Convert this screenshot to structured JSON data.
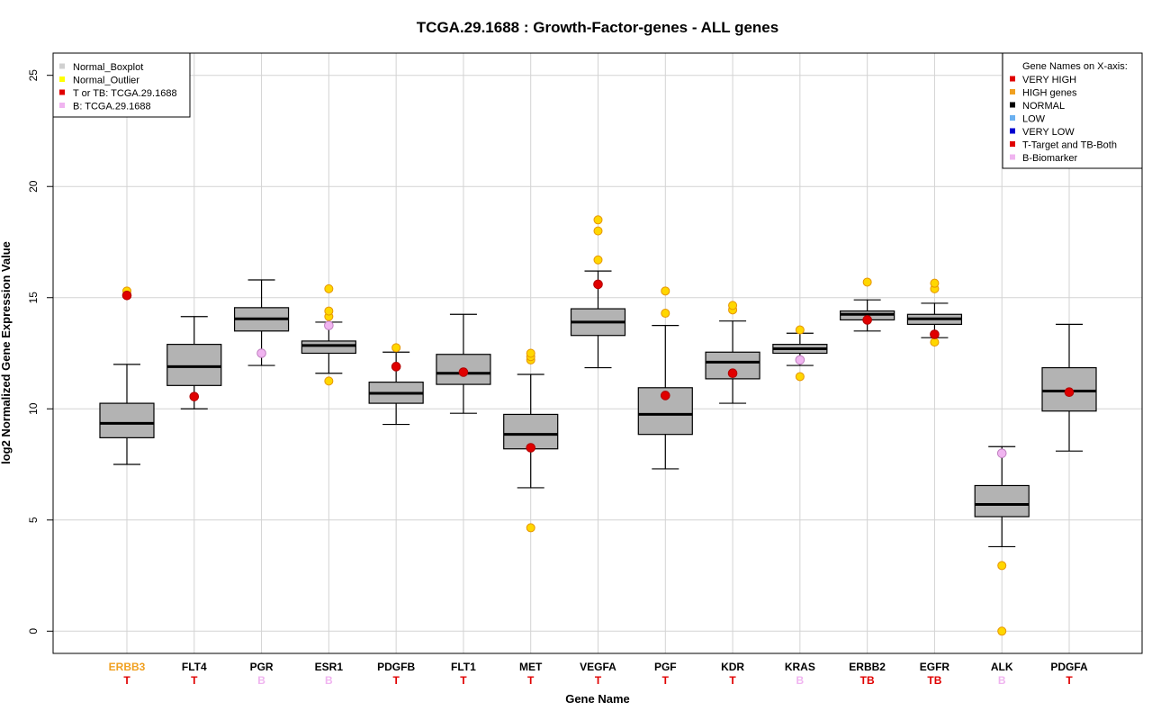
{
  "chart_data": {
    "type": "boxplot",
    "title": "TCGA.29.1688 : Growth-Factor-genes - ALL genes",
    "xlabel": "Gene Name",
    "ylabel": "log2 Normalized Gene Expression Value",
    "ylim": [
      -1,
      26
    ],
    "yticks": [
      0,
      5,
      10,
      15,
      20,
      25
    ],
    "grid": true,
    "colors": {
      "box_fill": "#b3b3b3",
      "outlier": "#ffd700",
      "outlier_border": "#e69500",
      "sample_T": "#e00000",
      "sample_B": "#f0b4f0",
      "gene_high": "#f0a020",
      "gene_normal": "#000000",
      "tag_T": "#e00000",
      "tag_B": "#f0b4f0"
    },
    "genes": [
      {
        "name": "ERBB3",
        "name_class": "high",
        "tag": "T",
        "whisker_low": 7.5,
        "q1": 8.7,
        "median": 9.35,
        "q3": 10.25,
        "whisker_high": 12.0,
        "outliers": [
          15.3
        ],
        "sample": 15.1,
        "sample_type": "T"
      },
      {
        "name": "FLT4",
        "name_class": "normal",
        "tag": "T",
        "whisker_low": 10.0,
        "q1": 11.05,
        "median": 11.9,
        "q3": 12.9,
        "whisker_high": 14.15,
        "outliers": [],
        "sample": 10.55,
        "sample_type": "T"
      },
      {
        "name": "PGR",
        "name_class": "normal",
        "tag": "B",
        "whisker_low": 11.95,
        "q1": 13.5,
        "median": 14.05,
        "q3": 14.55,
        "whisker_high": 15.8,
        "outliers": [],
        "sample": 12.5,
        "sample_type": "B"
      },
      {
        "name": "ESR1",
        "name_class": "normal",
        "tag": "B",
        "whisker_low": 11.6,
        "q1": 12.5,
        "median": 12.85,
        "q3": 13.05,
        "whisker_high": 13.9,
        "outliers": [
          11.25,
          14.15,
          14.4,
          15.4
        ],
        "sample": 13.75,
        "sample_type": "B"
      },
      {
        "name": "PDGFB",
        "name_class": "normal",
        "tag": "T",
        "whisker_low": 9.3,
        "q1": 10.25,
        "median": 10.7,
        "q3": 11.2,
        "whisker_high": 12.55,
        "outliers": [
          12.75
        ],
        "sample": 11.9,
        "sample_type": "T"
      },
      {
        "name": "FLT1",
        "name_class": "normal",
        "tag": "T",
        "whisker_low": 9.8,
        "q1": 11.1,
        "median": 11.6,
        "q3": 12.45,
        "whisker_high": 14.25,
        "outliers": [],
        "sample": 11.65,
        "sample_type": "T"
      },
      {
        "name": "MET",
        "name_class": "normal",
        "tag": "T",
        "whisker_low": 6.45,
        "q1": 8.2,
        "median": 8.85,
        "q3": 9.75,
        "whisker_high": 11.55,
        "outliers": [
          4.65,
          12.2,
          12.35,
          12.5
        ],
        "sample": 8.25,
        "sample_type": "T"
      },
      {
        "name": "VEGFA",
        "name_class": "normal",
        "tag": "T",
        "whisker_low": 11.85,
        "q1": 13.3,
        "median": 13.9,
        "q3": 14.5,
        "whisker_high": 16.2,
        "outliers": [
          16.7,
          18.0,
          18.5
        ],
        "sample": 15.6,
        "sample_type": "T"
      },
      {
        "name": "PGF",
        "name_class": "normal",
        "tag": "T",
        "whisker_low": 7.3,
        "q1": 8.85,
        "median": 9.75,
        "q3": 10.95,
        "whisker_high": 13.75,
        "outliers": [
          14.3,
          15.3
        ],
        "sample": 10.6,
        "sample_type": "T"
      },
      {
        "name": "KDR",
        "name_class": "normal",
        "tag": "T",
        "whisker_low": 10.25,
        "q1": 11.35,
        "median": 12.1,
        "q3": 12.55,
        "whisker_high": 13.95,
        "outliers": [
          14.45,
          14.65
        ],
        "sample": 11.6,
        "sample_type": "T"
      },
      {
        "name": "KRAS",
        "name_class": "normal",
        "tag": "B",
        "whisker_low": 11.95,
        "q1": 12.5,
        "median": 12.7,
        "q3": 12.9,
        "whisker_high": 13.4,
        "outliers": [
          11.45,
          13.55
        ],
        "sample": 12.2,
        "sample_type": "B"
      },
      {
        "name": "ERBB2",
        "name_class": "normal",
        "tag": "TB",
        "whisker_low": 13.5,
        "q1": 14.0,
        "median": 14.25,
        "q3": 14.4,
        "whisker_high": 14.9,
        "outliers": [
          15.7
        ],
        "sample": 14.0,
        "sample_type": "T"
      },
      {
        "name": "EGFR",
        "name_class": "normal",
        "tag": "TB",
        "whisker_low": 13.2,
        "q1": 13.8,
        "median": 14.05,
        "q3": 14.25,
        "whisker_high": 14.75,
        "outliers": [
          13.0,
          15.4,
          15.65
        ],
        "sample": 13.35,
        "sample_type": "T"
      },
      {
        "name": "ALK",
        "name_class": "normal",
        "tag": "B",
        "whisker_low": 3.8,
        "q1": 5.15,
        "median": 5.7,
        "q3": 6.55,
        "whisker_high": 8.3,
        "outliers": [
          0.0,
          2.95
        ],
        "sample": 8.0,
        "sample_type": "B"
      },
      {
        "name": "PDGFA",
        "name_class": "normal",
        "tag": "T",
        "whisker_low": 8.1,
        "q1": 9.9,
        "median": 10.8,
        "q3": 11.85,
        "whisker_high": 13.8,
        "outliers": [],
        "sample": 10.75,
        "sample_type": "T"
      }
    ],
    "legend_left": {
      "placement": "top-left",
      "entries": [
        {
          "label": "Normal_Boxplot",
          "color": "#d0d0d0"
        },
        {
          "label": "Normal_Outlier",
          "color": "#ffff00"
        },
        {
          "label": "T or TB: TCGA.29.1688",
          "color": "#e00000"
        },
        {
          "label": "B: TCGA.29.1688",
          "color": "#f0b4f0"
        }
      ]
    },
    "legend_right": {
      "placement": "top-right",
      "title": "Gene Names on X-axis:",
      "entries": [
        {
          "label": "VERY HIGH",
          "color": "#e00000"
        },
        {
          "label": "HIGH genes",
          "color": "#f0a020"
        },
        {
          "label": "NORMAL",
          "color": "#000000"
        },
        {
          "label": "LOW",
          "color": "#6ab0f0"
        },
        {
          "label": "VERY LOW",
          "color": "#0000d0"
        },
        {
          "label": "T-Target and TB-Both",
          "color": "#e00000"
        },
        {
          "label": "B-Biomarker",
          "color": "#f0b4f0"
        }
      ]
    }
  }
}
